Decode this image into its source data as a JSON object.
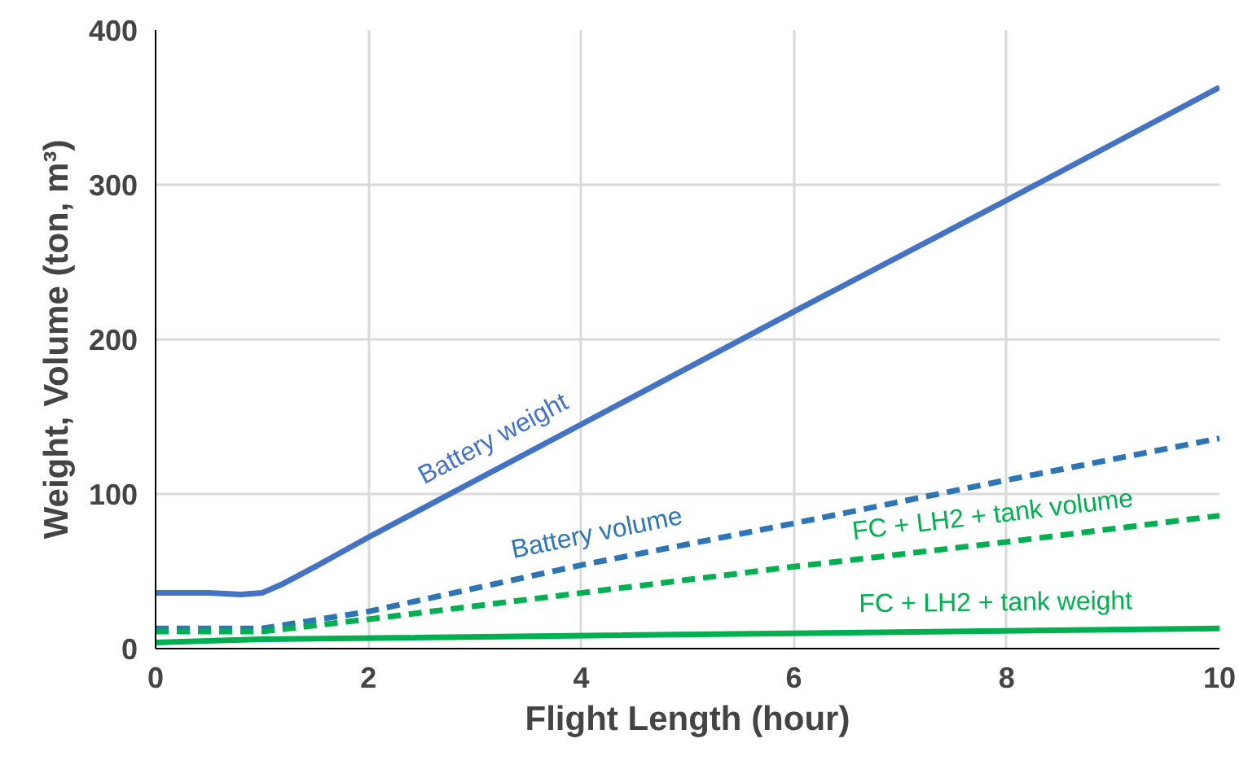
{
  "chart_data": {
    "type": "line",
    "xlabel": "Flight Length (hour)",
    "ylabel": "Weight, Volume (ton, m³)",
    "xlim": [
      0,
      10
    ],
    "ylim": [
      0,
      400
    ],
    "xticks": [
      0,
      2,
      4,
      6,
      8,
      10
    ],
    "yticks": [
      0,
      100,
      200,
      300,
      400
    ],
    "grid": true,
    "series": [
      {
        "name": "Battery weight",
        "color": "#4472c4",
        "line_style": "solid",
        "x": [
          0,
          0.5,
          0.8,
          1,
          1.2,
          1.5,
          2,
          4,
          6,
          8,
          10
        ],
        "values": [
          36,
          36,
          35,
          36,
          42,
          53,
          72,
          145,
          218,
          290,
          363
        ]
      },
      {
        "name": "Battery volume",
        "color": "#2e75b6",
        "line_style": "dashed",
        "x": [
          0,
          0.5,
          1,
          2,
          4,
          6,
          8,
          10
        ],
        "values": [
          13,
          13,
          13,
          24,
          54,
          81,
          109,
          136
        ]
      },
      {
        "name": "FC + LH2 + tank volume",
        "color": "#00b050",
        "line_style": "dashed",
        "x": [
          0,
          1,
          2,
          4,
          6,
          8,
          10
        ],
        "values": [
          11,
          11,
          19,
          36,
          53,
          69,
          86
        ]
      },
      {
        "name": "FC + LH2 + tank weight",
        "color": "#00b050",
        "line_style": "solid",
        "x": [
          0,
          1,
          10
        ],
        "values": [
          4,
          6,
          13
        ]
      }
    ]
  }
}
